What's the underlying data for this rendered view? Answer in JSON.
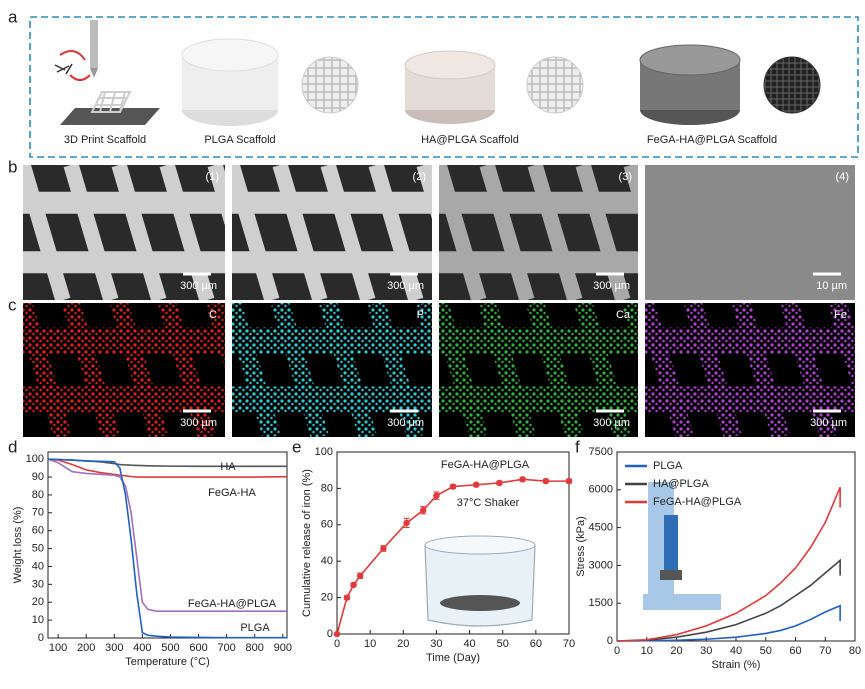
{
  "panel_labels": [
    "a",
    "b",
    "c",
    "d",
    "e",
    "f"
  ],
  "panel_a": {
    "captions": [
      "3D Print Scaffold",
      "PLGA Scaffold",
      "HA@PLGA Scaffold",
      "FeGA-HA@PLGA Scaffold"
    ]
  },
  "panel_b": {
    "images": [
      {
        "index": "(1)",
        "scale_bar": "300 µm"
      },
      {
        "index": "(2)",
        "scale_bar": "300 µm"
      },
      {
        "index": "(3)",
        "scale_bar": "300 µm"
      },
      {
        "index": "(4)",
        "scale_bar": "10 µm"
      }
    ]
  },
  "panel_c": {
    "images": [
      {
        "element": "C",
        "color": "#e02020",
        "scale_bar": "300 µm"
      },
      {
        "element": "P",
        "color": "#30c8d0",
        "scale_bar": "300 µm"
      },
      {
        "element": "Ca",
        "color": "#30b040",
        "scale_bar": "300 µm"
      },
      {
        "element": "Fe",
        "color": "#b040d0",
        "scale_bar": "300 µm"
      }
    ]
  },
  "chart_data": [
    {
      "type": "line",
      "x_label": "Temperature (°C)",
      "y_label": "Weight loss (%)",
      "x": [
        64,
        100,
        150,
        200,
        250,
        300,
        320,
        340,
        360,
        380,
        400,
        420,
        450,
        500,
        600,
        700,
        800,
        915
      ],
      "xlim": [
        64,
        915
      ],
      "xticks": [
        100,
        200,
        300,
        400,
        500,
        600,
        700,
        800,
        900
      ],
      "ylim": [
        0,
        104
      ],
      "yticks": [
        0,
        10,
        20,
        30,
        40,
        50,
        60,
        70,
        80,
        90,
        100
      ],
      "series": [
        {
          "name": "HA",
          "color": "#555555",
          "values": [
            100,
            99.8,
            99.5,
            99,
            98.5,
            97.5,
            97,
            96.8,
            96.6,
            96.5,
            96.4,
            96.3,
            96.2,
            96.1,
            96,
            96,
            96,
            96
          ]
        },
        {
          "name": "FeGA-HA",
          "color": "#e03a3a",
          "values": [
            100,
            99.5,
            97,
            94,
            92.5,
            91.5,
            91,
            90.7,
            90.3,
            90,
            90,
            90,
            90,
            90,
            90,
            90,
            90,
            90.2
          ]
        },
        {
          "name": "FeGA-HA@PLGA",
          "color": "#a070c0",
          "values": [
            100,
            98,
            93,
            92,
            91.5,
            91,
            90,
            85,
            70,
            45,
            20,
            16,
            15,
            15,
            15,
            15,
            15,
            15
          ]
        },
        {
          "name": "PLGA",
          "color": "#2060c0",
          "values": [
            100,
            99.8,
            99.5,
            99,
            98.8,
            98.5,
            95,
            80,
            55,
            25,
            3,
            1.5,
            1,
            0.5,
            0.3,
            0.2,
            0.2,
            0.2
          ]
        }
      ]
    },
    {
      "type": "line",
      "markers": true,
      "x_label": "Time (Day)",
      "y_label": "Cumulative release of iron (%)",
      "annotations": [
        "37°C Shaker"
      ],
      "x": [
        0,
        3,
        5,
        7,
        14,
        21,
        26,
        30,
        35,
        42,
        49,
        56,
        63,
        70
      ],
      "xlim": [
        0,
        70
      ],
      "xticks": [
        0,
        10,
        20,
        30,
        40,
        50,
        60,
        70
      ],
      "ylim": [
        0,
        100
      ],
      "yticks": [
        0,
        20,
        40,
        60,
        80,
        100
      ],
      "series": [
        {
          "name": "FeGA-HA@PLGA",
          "color": "#e03a3a",
          "values": [
            0,
            20,
            27,
            32,
            47,
            61,
            68,
            76,
            81,
            82,
            83,
            85,
            84,
            84
          ],
          "errors": [
            0,
            1,
            1,
            1.5,
            1.5,
            2.5,
            2,
            2,
            1,
            1,
            1,
            1,
            1,
            1
          ]
        }
      ]
    },
    {
      "type": "line",
      "x_label": "Strain (%)",
      "y_label": "Stress (kPa)",
      "legend": "upper left",
      "x": [
        0,
        10,
        20,
        30,
        40,
        50,
        55,
        60,
        65,
        70,
        75,
        75
      ],
      "xlim": [
        0,
        80
      ],
      "xticks": [
        0,
        10,
        20,
        30,
        40,
        50,
        60,
        70,
        80
      ],
      "ylim": [
        0,
        7500
      ],
      "yticks": [
        0,
        1500,
        3000,
        4500,
        6000,
        7500
      ],
      "series": [
        {
          "name": "PLGA",
          "color": "#2060c0",
          "values": [
            0,
            10,
            30,
            70,
            150,
            300,
            420,
            600,
            850,
            1150,
            1400,
            800
          ]
        },
        {
          "name": "HA@PLGA",
          "color": "#444444",
          "values": [
            0,
            30,
            150,
            350,
            650,
            1100,
            1400,
            1800,
            2200,
            2700,
            3200,
            2600
          ]
        },
        {
          "name": "FeGA-HA@PLGA",
          "color": "#e03a3a",
          "values": [
            0,
            50,
            250,
            600,
            1100,
            1800,
            2300,
            2900,
            3700,
            4700,
            6100,
            5300
          ]
        }
      ]
    }
  ]
}
